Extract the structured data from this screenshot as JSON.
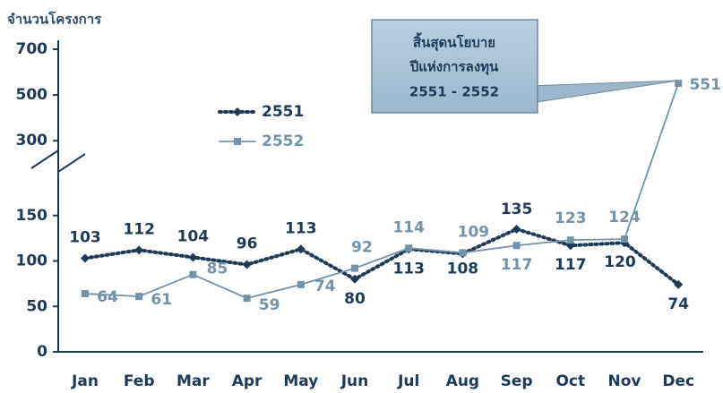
{
  "chart_data": {
    "type": "line",
    "y_label": "จำนวนโครงการ",
    "categories": [
      "Jan",
      "Feb",
      "Mar",
      "Apr",
      "May",
      "Jun",
      "Jul",
      "Aug",
      "Sep",
      "Oct",
      "Nov",
      "Dec"
    ],
    "series": [
      {
        "name": "2551",
        "color": "#1d3b58",
        "values": [
          103,
          112,
          104,
          96,
          113,
          80,
          113,
          108,
          135,
          117,
          120,
          74
        ]
      },
      {
        "name": "2552",
        "color": "#7393aa",
        "values": [
          64,
          61,
          85,
          59,
          74,
          92,
          114,
          109,
          117,
          123,
          124,
          551
        ]
      }
    ],
    "ylim": [
      0,
      700
    ],
    "yticks": [
      0,
      50,
      100,
      150,
      300,
      500,
      700
    ],
    "axis_break": [
      200,
      250
    ],
    "annotation": [
      "สิ้นสุดนโยบาย",
      "ปีแห่งการลงทุน",
      "2551 - 2552"
    ]
  }
}
